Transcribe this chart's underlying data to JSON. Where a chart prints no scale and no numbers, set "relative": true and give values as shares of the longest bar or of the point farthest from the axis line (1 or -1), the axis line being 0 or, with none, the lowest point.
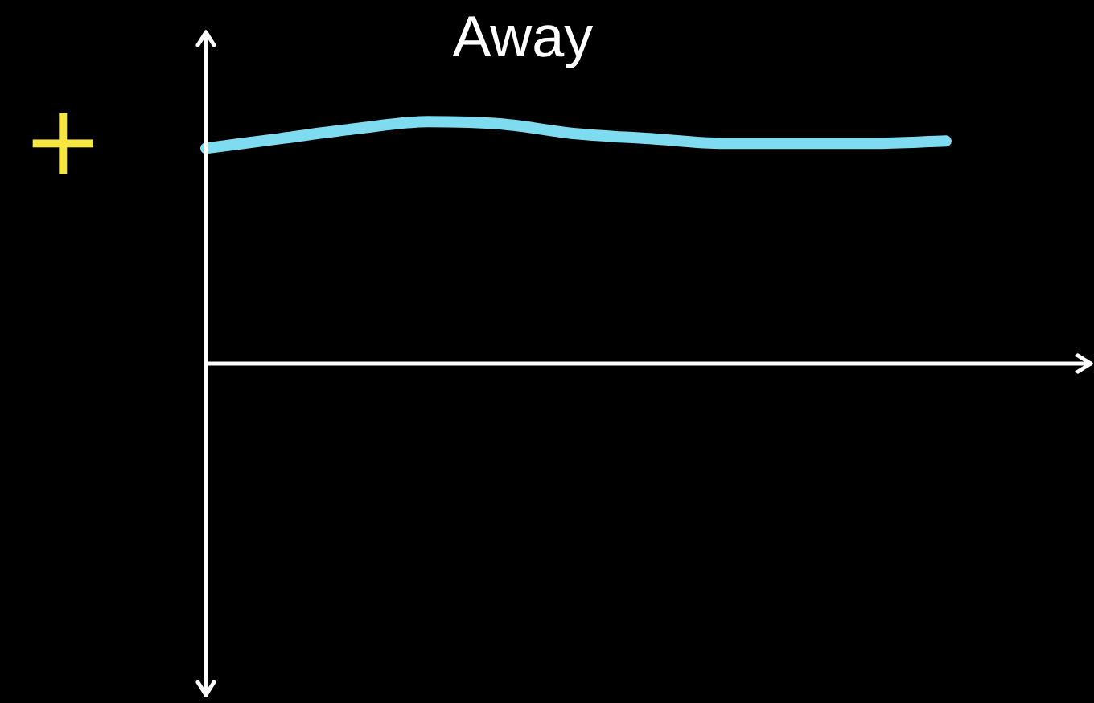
{
  "chart_data": {
    "type": "line",
    "title": "Away",
    "ylabel": "+",
    "relative": true,
    "categories": [
      null,
      null,
      null,
      null,
      null,
      null,
      null,
      null,
      null,
      null,
      null,
      null,
      null
    ],
    "series": [
      {
        "color": "#7fdcf0",
        "values": [
          0.89,
          0.93,
          0.97,
          1,
          0.99,
          0.95,
          0.93,
          0.91,
          0.91,
          0.91,
          0.92,
          null,
          null
        ]
      }
    ]
  }
}
